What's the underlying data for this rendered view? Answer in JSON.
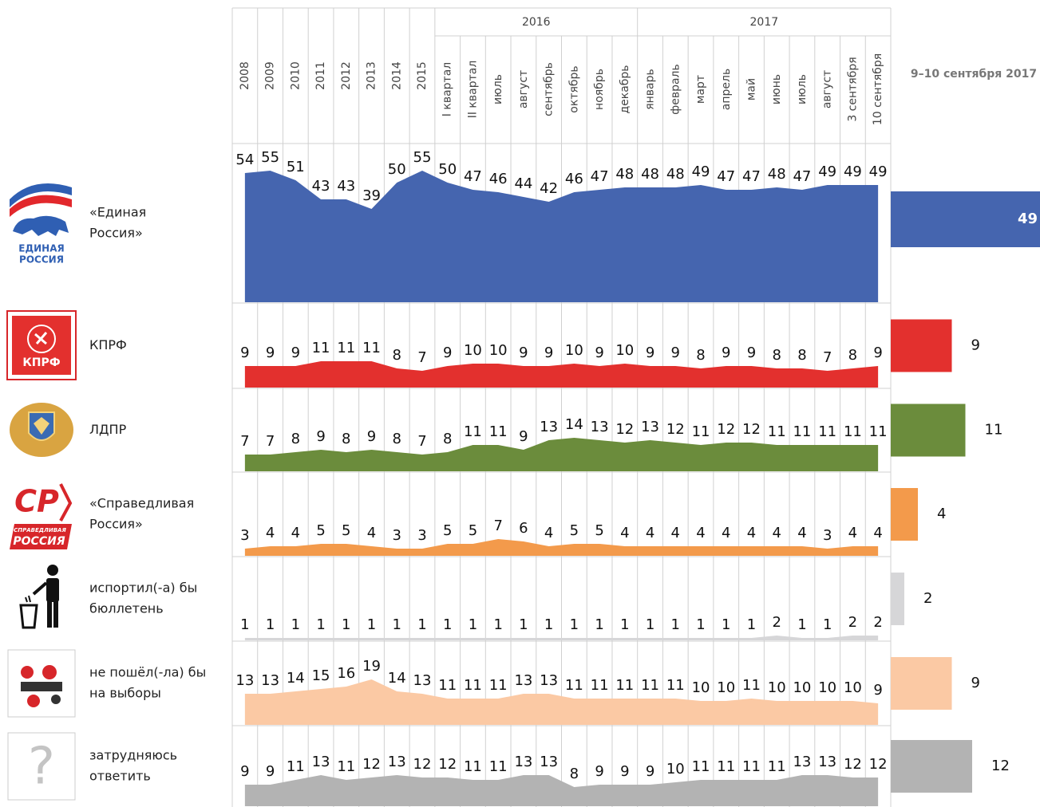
{
  "chart_data": {
    "type": "area",
    "categories": [
      "2008",
      "2009",
      "2010",
      "2011",
      "2012",
      "2013",
      "2014",
      "2015",
      "I квартал",
      "II квартал",
      "июль",
      "август",
      "сентябрь",
      "октябрь",
      "ноябрь",
      "декабрь",
      "январь",
      "февраль",
      "март",
      "апрель",
      "май",
      "июнь",
      "июль",
      "август",
      "3 сентября",
      "10 сентября"
    ],
    "category_groups": [
      {
        "label": "2016",
        "from": 8,
        "to": 15
      },
      {
        "label": "2017",
        "from": 16,
        "to": 25
      }
    ],
    "ylim": [
      0,
      60
    ],
    "series": [
      {
        "name_lines": [
          "«Единая",
          "Россия»"
        ],
        "logo_text": [
          "ЕДИНАЯ",
          "РОССИЯ"
        ],
        "color": "#4565af",
        "values": [
          54,
          55,
          51,
          43,
          43,
          39,
          50,
          55,
          50,
          47,
          46,
          44,
          42,
          46,
          47,
          48,
          48,
          48,
          49,
          47,
          47,
          48,
          47,
          49,
          49,
          49
        ]
      },
      {
        "name_lines": [
          "КПРФ"
        ],
        "logo_text": [
          "КПРФ"
        ],
        "color": "#e3302e",
        "values": [
          9,
          9,
          9,
          11,
          11,
          11,
          8,
          7,
          9,
          10,
          10,
          9,
          9,
          10,
          9,
          10,
          9,
          9,
          8,
          9,
          9,
          8,
          8,
          7,
          8,
          9
        ]
      },
      {
        "name_lines": [
          "ЛДПР"
        ],
        "color": "#6b8c3c",
        "values": [
          7,
          7,
          8,
          9,
          8,
          9,
          8,
          7,
          8,
          11,
          11,
          9,
          13,
          14,
          13,
          12,
          13,
          12,
          11,
          12,
          12,
          11,
          11,
          11,
          11,
          11
        ]
      },
      {
        "name_lines": [
          "«Справедливая",
          "Россия»"
        ],
        "logo_text": [
          "СР",
          "СПРАВЕДЛИВАЯ",
          "РОССИЯ"
        ],
        "color": "#f39a4b",
        "values": [
          3,
          4,
          4,
          5,
          5,
          4,
          3,
          3,
          5,
          5,
          7,
          6,
          4,
          5,
          5,
          4,
          4,
          4,
          4,
          4,
          4,
          4,
          4,
          3,
          4,
          4
        ]
      },
      {
        "name_lines": [
          "испортил(-а) бы",
          "бюллетень"
        ],
        "color": "#d6d6d8",
        "values": [
          1,
          1,
          1,
          1,
          1,
          1,
          1,
          1,
          1,
          1,
          1,
          1,
          1,
          1,
          1,
          1,
          1,
          1,
          1,
          1,
          1,
          2,
          1,
          1,
          2,
          2
        ]
      },
      {
        "name_lines": [
          "не пошёл(-ла) бы",
          "на выборы"
        ],
        "color": "#fbc9a4",
        "values": [
          13,
          13,
          14,
          15,
          16,
          19,
          14,
          13,
          11,
          11,
          11,
          13,
          13,
          11,
          11,
          11,
          11,
          11,
          10,
          10,
          11,
          10,
          10,
          10,
          10,
          9
        ]
      },
      {
        "name_lines": [
          "затрудняюсь",
          "ответить"
        ],
        "logo_text": [
          "?"
        ],
        "color": "#b3b3b3",
        "values": [
          9,
          9,
          11,
          13,
          11,
          12,
          13,
          12,
          12,
          11,
          11,
          13,
          13,
          8,
          9,
          9,
          9,
          10,
          11,
          11,
          11,
          11,
          13,
          13,
          12,
          12
        ]
      }
    ],
    "latest_title": "9–10 сентября 2017",
    "latest_values": [
      49,
      9,
      11,
      4,
      2,
      9,
      12
    ],
    "latest_xlim": [
      0,
      22
    ]
  }
}
